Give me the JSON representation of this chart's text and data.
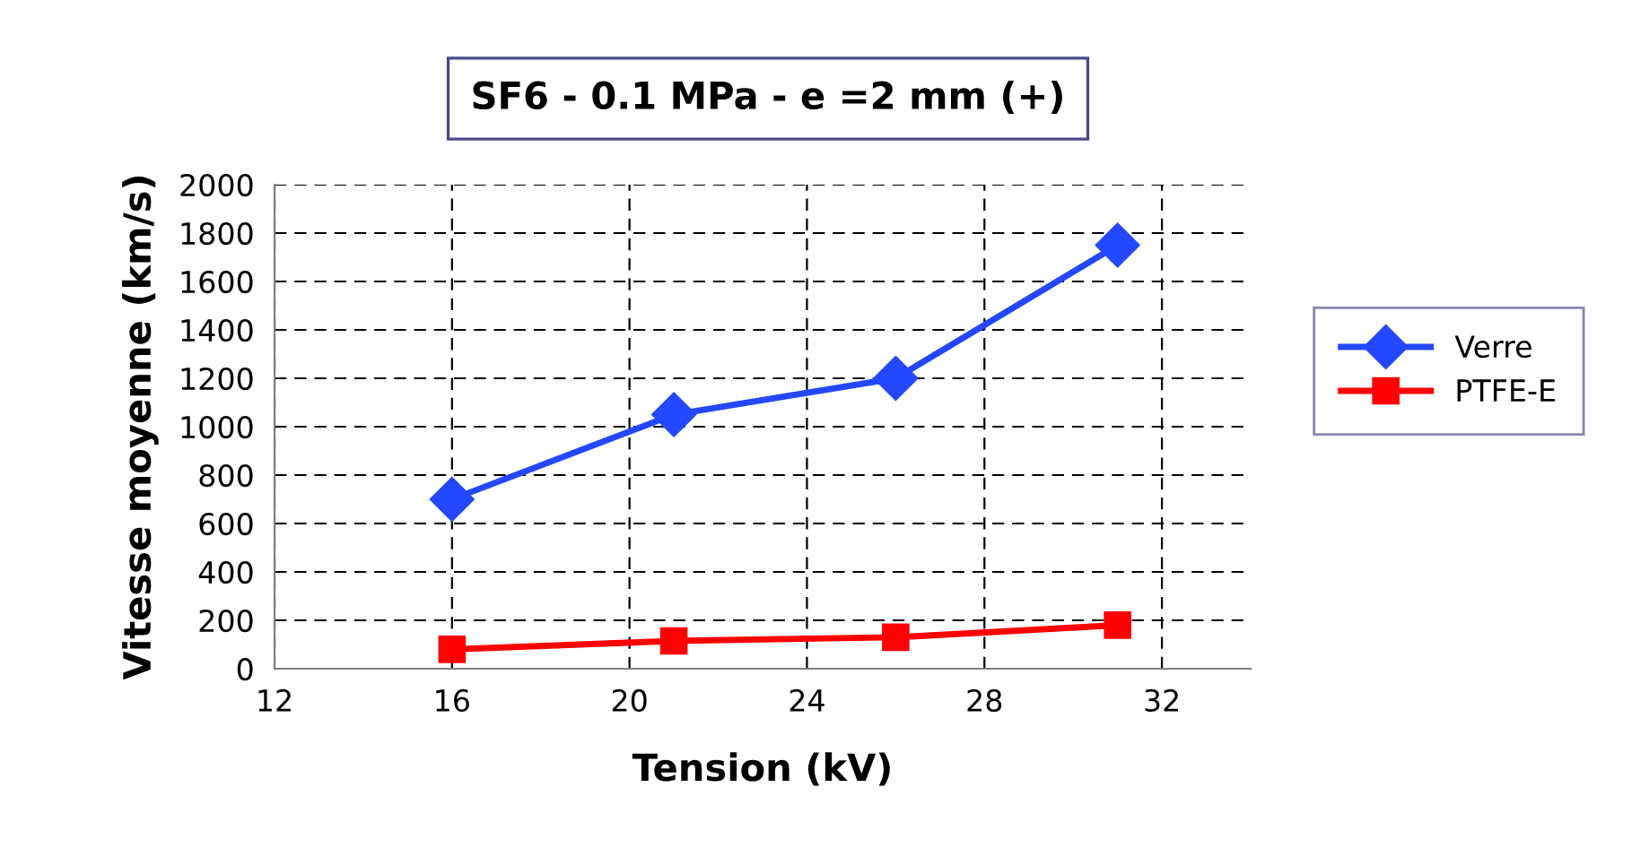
{
  "chart_data": {
    "type": "line",
    "title": "SF6 - 0.1 MPa - e =2 mm (+)",
    "xlabel": "Tension (kV)",
    "ylabel": "Vitesse moyenne (km/s)",
    "x": [
      16,
      21,
      26,
      31
    ],
    "series": [
      {
        "name": "Verre",
        "color": "#2448ff",
        "values": [
          700,
          1050,
          1200,
          1750
        ],
        "marker": "diamond"
      },
      {
        "name": "PTFE-E",
        "color": "#ff0000",
        "values": [
          80,
          115,
          130,
          180
        ],
        "marker": "square"
      }
    ],
    "xlim": [
      12,
      34
    ],
    "xticks": [
      12,
      16,
      20,
      24,
      28,
      32
    ],
    "ylim": [
      0,
      2000
    ],
    "yticks": [
      0,
      200,
      400,
      600,
      800,
      1000,
      1200,
      1400,
      1600,
      1800,
      2000
    ],
    "grid": true,
    "legend": "right",
    "line_style": "solid"
  }
}
